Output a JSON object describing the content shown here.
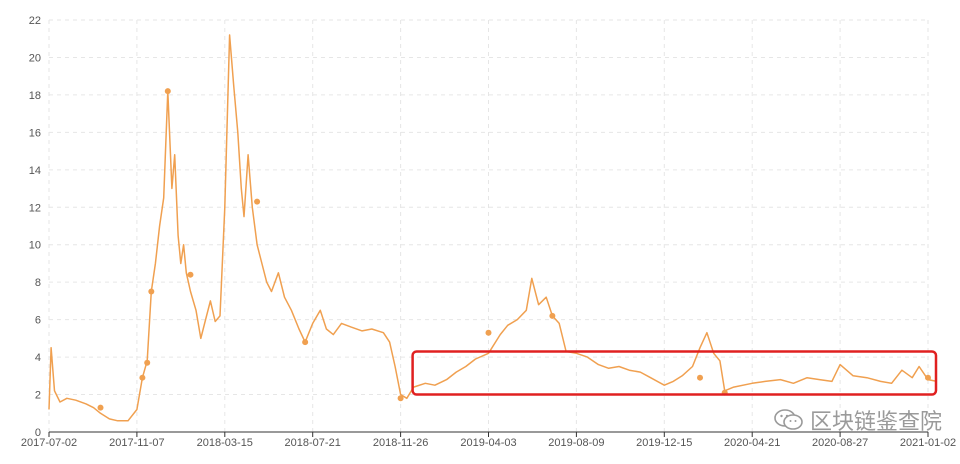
{
  "chart_data": {
    "type": "line",
    "title": "",
    "xlabel": "",
    "ylabel": "",
    "ylim": [
      0,
      22
    ],
    "yticks": [
      "0",
      "2",
      "4",
      "6",
      "8",
      "10",
      "12",
      "14",
      "16",
      "18",
      "20",
      "22"
    ],
    "xticks": [
      "2017-07-02",
      "2017-11-07",
      "2018-03-15",
      "2018-07-21",
      "2018-11-26",
      "2019-04-03",
      "2019-08-09",
      "2019-12-15",
      "2020-04-21",
      "2020-08-27",
      "2021-01-02"
    ],
    "grid": true,
    "line_color": "#f0a050",
    "highlight_box_color": "#e02020",
    "highlight_box": {
      "x_from": "2018-11-26",
      "x_to": "2021-01-02",
      "y_from": 2.0,
      "y_to": 4.3
    },
    "series": [
      {
        "x": [
          "2017-07-02",
          "2017-07-05",
          "2017-07-10",
          "2017-07-18",
          "2017-07-28",
          "2017-08-10",
          "2017-08-25",
          "2017-09-05",
          "2017-09-15",
          "2017-09-28",
          "2017-10-10",
          "2017-10-25",
          "2017-11-07",
          "2017-11-15",
          "2017-11-22",
          "2017-11-28",
          "2017-12-04",
          "2017-12-10",
          "2017-12-16",
          "2017-12-22",
          "2017-12-28",
          "2018-01-01",
          "2018-01-06",
          "2018-01-10",
          "2018-01-14",
          "2018-01-18",
          "2018-01-24",
          "2018-02-01",
          "2018-02-08",
          "2018-02-15",
          "2018-02-22",
          "2018-03-01",
          "2018-03-08",
          "2018-03-15",
          "2018-03-22",
          "2018-03-28",
          "2018-04-03",
          "2018-04-08",
          "2018-04-12",
          "2018-04-18",
          "2018-04-24",
          "2018-05-01",
          "2018-05-08",
          "2018-05-15",
          "2018-05-22",
          "2018-06-01",
          "2018-06-10",
          "2018-06-20",
          "2018-07-01",
          "2018-07-10",
          "2018-07-21",
          "2018-08-01",
          "2018-08-10",
          "2018-08-20",
          "2018-09-01",
          "2018-09-15",
          "2018-10-01",
          "2018-10-15",
          "2018-11-01",
          "2018-11-10",
          "2018-11-18",
          "2018-11-26",
          "2018-12-05",
          "2018-12-15",
          "2019-01-01",
          "2019-01-15",
          "2019-02-01",
          "2019-02-15",
          "2019-03-01",
          "2019-03-15",
          "2019-04-03",
          "2019-04-20",
          "2019-05-01",
          "2019-05-15",
          "2019-05-28",
          "2019-06-05",
          "2019-06-15",
          "2019-06-26",
          "2019-07-05",
          "2019-07-15",
          "2019-07-25",
          "2019-08-09",
          "2019-08-25",
          "2019-09-10",
          "2019-09-25",
          "2019-10-10",
          "2019-10-25",
          "2019-11-10",
          "2019-11-25",
          "2019-12-15",
          "2019-12-28",
          "2020-01-10",
          "2020-01-25",
          "2020-02-05",
          "2020-02-15",
          "2020-02-25",
          "2020-03-05",
          "2020-03-12",
          "2020-03-25",
          "2020-04-21",
          "2020-05-10",
          "2020-06-01",
          "2020-06-20",
          "2020-07-10",
          "2020-07-28",
          "2020-08-15",
          "2020-08-27",
          "2020-09-15",
          "2020-10-05",
          "2020-10-25",
          "2020-11-10",
          "2020-11-25",
          "2020-12-10",
          "2020-12-20",
          "2021-01-02",
          "2021-01-15"
        ],
        "y": [
          1.2,
          4.5,
          2.2,
          1.6,
          1.8,
          1.7,
          1.5,
          1.3,
          1.0,
          0.7,
          0.6,
          0.6,
          1.2,
          2.9,
          3.8,
          7.5,
          9.0,
          11.0,
          12.5,
          18.2,
          13.0,
          14.8,
          10.5,
          9.0,
          10.0,
          8.5,
          7.5,
          6.5,
          5.0,
          6.0,
          7.0,
          5.9,
          6.2,
          12.0,
          21.2,
          18.5,
          16.0,
          13.0,
          11.5,
          14.8,
          12.0,
          10.0,
          9.0,
          8.0,
          7.5,
          8.5,
          7.2,
          6.5,
          5.5,
          4.8,
          5.8,
          6.5,
          5.5,
          5.2,
          5.8,
          5.6,
          5.4,
          5.5,
          5.3,
          4.8,
          3.5,
          2.0,
          1.8,
          2.4,
          2.6,
          2.5,
          2.8,
          3.2,
          3.5,
          3.9,
          4.2,
          5.2,
          5.7,
          6.0,
          6.5,
          8.2,
          6.8,
          7.2,
          6.2,
          5.8,
          4.3,
          4.2,
          4.0,
          3.6,
          3.4,
          3.5,
          3.3,
          3.2,
          2.9,
          2.5,
          2.7,
          3.0,
          3.5,
          4.5,
          5.3,
          4.2,
          3.8,
          2.2,
          2.4,
          2.6,
          2.7,
          2.8,
          2.6,
          2.9,
          2.8,
          2.7,
          3.6,
          3.0,
          2.9,
          2.7,
          2.6,
          3.3,
          2.9,
          3.5,
          2.8,
          2.7
        ]
      }
    ],
    "markers": [
      {
        "x": "2017-09-15",
        "y": 1.3
      },
      {
        "x": "2017-11-15",
        "y": 2.9
      },
      {
        "x": "2017-11-22",
        "y": 3.7
      },
      {
        "x": "2017-11-28",
        "y": 7.5
      },
      {
        "x": "2017-12-22",
        "y": 18.2
      },
      {
        "x": "2018-01-24",
        "y": 8.4
      },
      {
        "x": "2018-05-01",
        "y": 12.3
      },
      {
        "x": "2018-07-10",
        "y": 4.8
      },
      {
        "x": "2018-11-26",
        "y": 1.8
      },
      {
        "x": "2019-04-03",
        "y": 5.3
      },
      {
        "x": "2019-07-05",
        "y": 6.2
      },
      {
        "x": "2020-02-05",
        "y": 2.9
      },
      {
        "x": "2020-03-12",
        "y": 2.1
      },
      {
        "x": "2021-01-02",
        "y": 2.9
      }
    ]
  },
  "watermark": {
    "text": "区块链鉴查院",
    "icon": "wechat-icon"
  }
}
